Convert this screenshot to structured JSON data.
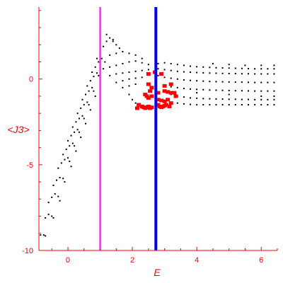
{
  "chart_data": {
    "type": "scatter",
    "title": "",
    "xlabel": "E",
    "ylabel": "<J3>",
    "xlim": [
      -0.9,
      6.5
    ],
    "ylim": [
      -10,
      4.2
    ],
    "grid": false,
    "axis_color": "#ff0000",
    "x_ticks": [
      {
        "value": 0,
        "label": "0"
      },
      {
        "value": 2,
        "label": "2"
      },
      {
        "value": 4,
        "label": "4"
      },
      {
        "value": 6,
        "label": "6"
      }
    ],
    "y_ticks": [
      {
        "value": 0,
        "label": "0"
      },
      {
        "value": -5,
        "label": "-5"
      },
      {
        "value": -10,
        "label": "-10"
      }
    ],
    "vertical_lines": [
      {
        "x": 1.0,
        "color": "#ff00ff"
      },
      {
        "x": 2.73,
        "color": "#0000ff"
      }
    ],
    "series": [
      {
        "color": "#000000",
        "size": "small",
        "points": [
          [
            -0.85,
            -9.1
          ],
          [
            -0.75,
            -9.1
          ],
          [
            -0.7,
            -9.15
          ],
          [
            -0.7,
            -8.1
          ],
          [
            -0.6,
            -7.9
          ],
          [
            -0.5,
            -8.0
          ],
          [
            -0.45,
            -8.1
          ],
          [
            -0.6,
            -7.2
          ],
          [
            -0.5,
            -6.9
          ],
          [
            -0.4,
            -6.7
          ],
          [
            -0.3,
            -6.85
          ],
          [
            -0.25,
            -7.1
          ],
          [
            -0.45,
            -6.2
          ],
          [
            -0.35,
            -5.9
          ],
          [
            -0.25,
            -5.75
          ],
          [
            -0.15,
            -5.8
          ],
          [
            -0.1,
            -6.0
          ],
          [
            -0.3,
            -5.2
          ],
          [
            -0.2,
            -4.9
          ],
          [
            -0.1,
            -4.7
          ],
          [
            0.0,
            -4.6
          ],
          [
            0.05,
            -4.8
          ],
          [
            0.1,
            -5.1
          ],
          [
            -0.15,
            -4.4
          ],
          [
            -0.05,
            -4.1
          ],
          [
            0.05,
            -3.9
          ],
          [
            0.15,
            -3.75
          ],
          [
            0.2,
            -3.9
          ],
          [
            0.25,
            -4.2
          ],
          [
            0.0,
            -3.6
          ],
          [
            0.1,
            -3.3
          ],
          [
            0.2,
            -3.1
          ],
          [
            0.3,
            -2.95
          ],
          [
            0.35,
            -3.1
          ],
          [
            0.4,
            -3.4
          ],
          [
            0.15,
            -2.8
          ],
          [
            0.25,
            -2.5
          ],
          [
            0.35,
            -2.3
          ],
          [
            0.45,
            -2.15
          ],
          [
            0.5,
            -2.3
          ],
          [
            0.55,
            -2.6
          ],
          [
            0.3,
            -2.0
          ],
          [
            0.4,
            -1.7
          ],
          [
            0.5,
            -1.5
          ],
          [
            0.6,
            -1.35
          ],
          [
            0.65,
            -1.5
          ],
          [
            0.7,
            -1.8
          ],
          [
            0.45,
            -1.2
          ],
          [
            0.55,
            -0.9
          ],
          [
            0.65,
            -0.7
          ],
          [
            0.75,
            -0.5
          ],
          [
            0.8,
            -0.7
          ],
          [
            0.85,
            -1.0
          ],
          [
            0.6,
            -0.4
          ],
          [
            0.7,
            -0.1
          ],
          [
            0.8,
            0.15
          ],
          [
            0.9,
            0.35
          ],
          [
            0.95,
            0.2
          ],
          [
            0.75,
            0.4
          ],
          [
            0.85,
            0.7
          ],
          [
            0.95,
            1.0
          ],
          [
            1.05,
            1.2
          ],
          [
            1.15,
            1.0
          ],
          [
            0.9,
            1.2
          ],
          [
            1.0,
            1.6
          ],
          [
            1.1,
            1.9
          ],
          [
            1.2,
            2.2
          ],
          [
            1.3,
            2.4
          ],
          [
            1.4,
            2.3
          ],
          [
            1.0,
            2.8
          ],
          [
            1.2,
            2.6
          ],
          [
            1.4,
            2.2
          ],
          [
            1.5,
            2.0
          ],
          [
            1.6,
            1.8
          ],
          [
            1.3,
            1.4
          ],
          [
            1.5,
            1.5
          ],
          [
            1.7,
            1.6
          ],
          [
            1.9,
            1.5
          ],
          [
            2.1,
            1.4
          ],
          [
            2.3,
            1.2
          ],
          [
            1.1,
            0.6
          ],
          [
            1.3,
            0.7
          ],
          [
            1.5,
            0.8
          ],
          [
            1.7,
            0.9
          ],
          [
            1.9,
            1.0
          ],
          [
            2.1,
            1.05
          ],
          [
            2.3,
            0.95
          ],
          [
            2.5,
            0.85
          ],
          [
            1.3,
            0.2
          ],
          [
            1.5,
            0.3
          ],
          [
            1.7,
            0.35
          ],
          [
            1.9,
            0.4
          ],
          [
            2.1,
            0.45
          ],
          [
            2.3,
            0.5
          ],
          [
            2.5,
            0.55
          ],
          [
            1.5,
            -0.2
          ],
          [
            1.7,
            -0.1
          ],
          [
            1.9,
            0.0
          ],
          [
            2.1,
            0.05
          ],
          [
            2.3,
            0.1
          ],
          [
            1.7,
            -0.5
          ],
          [
            1.9,
            -0.4
          ],
          [
            2.1,
            -0.3
          ],
          [
            1.9,
            -0.9
          ],
          [
            2.0,
            -1.2
          ],
          [
            2.1,
            -1.4
          ],
          [
            2.8,
            0.9
          ],
          [
            3.0,
            0.95
          ],
          [
            3.2,
            0.9
          ],
          [
            3.4,
            0.85
          ],
          [
            3.6,
            0.8
          ],
          [
            3.8,
            0.75
          ],
          [
            4.0,
            0.72
          ],
          [
            4.2,
            0.7
          ],
          [
            4.4,
            0.68
          ],
          [
            4.6,
            0.66
          ],
          [
            4.8,
            0.65
          ],
          [
            5.0,
            0.64
          ],
          [
            5.2,
            0.63
          ],
          [
            5.4,
            0.62
          ],
          [
            5.6,
            0.61
          ],
          [
            5.8,
            0.6
          ],
          [
            6.0,
            0.6
          ],
          [
            6.2,
            0.6
          ],
          [
            6.4,
            0.6
          ],
          [
            2.8,
            0.6
          ],
          [
            3.0,
            0.55
          ],
          [
            3.2,
            0.5
          ],
          [
            3.4,
            0.45
          ],
          [
            3.6,
            0.42
          ],
          [
            3.8,
            0.4
          ],
          [
            4.0,
            0.38
          ],
          [
            4.2,
            0.36
          ],
          [
            4.4,
            0.35
          ],
          [
            4.6,
            0.34
          ],
          [
            4.8,
            0.33
          ],
          [
            5.0,
            0.32
          ],
          [
            5.2,
            0.32
          ],
          [
            5.4,
            0.31
          ],
          [
            5.6,
            0.31
          ],
          [
            5.8,
            0.3
          ],
          [
            6.0,
            0.3
          ],
          [
            6.2,
            0.3
          ],
          [
            6.4,
            0.3
          ],
          [
            2.8,
            0.2
          ],
          [
            3.0,
            0.1
          ],
          [
            3.2,
            0.05
          ],
          [
            3.4,
            0.0
          ],
          [
            3.6,
            -0.05
          ],
          [
            3.8,
            -0.08
          ],
          [
            4.0,
            -0.1
          ],
          [
            4.2,
            -0.12
          ],
          [
            4.4,
            -0.14
          ],
          [
            4.6,
            -0.15
          ],
          [
            4.8,
            -0.16
          ],
          [
            5.0,
            -0.17
          ],
          [
            5.2,
            -0.18
          ],
          [
            5.4,
            -0.18
          ],
          [
            5.6,
            -0.19
          ],
          [
            5.8,
            -0.2
          ],
          [
            6.0,
            -0.2
          ],
          [
            6.2,
            -0.2
          ],
          [
            6.4,
            -0.2
          ],
          [
            3.0,
            -0.4
          ],
          [
            3.2,
            -0.45
          ],
          [
            3.4,
            -0.5
          ],
          [
            3.6,
            -0.55
          ],
          [
            3.8,
            -0.58
          ],
          [
            4.0,
            -0.6
          ],
          [
            4.2,
            -0.62
          ],
          [
            4.4,
            -0.64
          ],
          [
            4.6,
            -0.65
          ],
          [
            4.8,
            -0.66
          ],
          [
            5.0,
            -0.67
          ],
          [
            5.2,
            -0.68
          ],
          [
            5.4,
            -0.68
          ],
          [
            5.6,
            -0.69
          ],
          [
            5.8,
            -0.7
          ],
          [
            6.0,
            -0.7
          ],
          [
            6.2,
            -0.7
          ],
          [
            6.4,
            -0.7
          ],
          [
            3.2,
            -0.9
          ],
          [
            3.4,
            -1.0
          ],
          [
            3.6,
            -1.05
          ],
          [
            3.8,
            -1.1
          ],
          [
            4.0,
            -1.12
          ],
          [
            4.2,
            -1.14
          ],
          [
            4.4,
            -1.15
          ],
          [
            4.6,
            -1.16
          ],
          [
            4.8,
            -1.17
          ],
          [
            5.0,
            -1.18
          ],
          [
            5.2,
            -1.18
          ],
          [
            5.4,
            -1.19
          ],
          [
            5.6,
            -1.19
          ],
          [
            5.8,
            -1.2
          ],
          [
            6.0,
            -1.2
          ],
          [
            6.2,
            -1.2
          ],
          [
            6.4,
            -1.2
          ],
          [
            3.4,
            -1.4
          ],
          [
            3.6,
            -1.45
          ],
          [
            3.8,
            -1.48
          ],
          [
            4.0,
            -1.5
          ],
          [
            4.2,
            -1.5
          ],
          [
            4.4,
            -1.5
          ],
          [
            4.6,
            -1.5
          ],
          [
            4.8,
            -1.5
          ],
          [
            5.0,
            -1.5
          ],
          [
            5.2,
            -1.5
          ],
          [
            5.4,
            -1.5
          ],
          [
            5.6,
            -1.5
          ],
          [
            5.8,
            -1.5
          ],
          [
            6.0,
            -1.5
          ],
          [
            6.2,
            -1.5
          ],
          [
            6.4,
            -1.5
          ],
          [
            4.5,
            0.9
          ],
          [
            5.0,
            0.85
          ],
          [
            5.5,
            0.8
          ],
          [
            6.0,
            0.8
          ],
          [
            6.4,
            0.8
          ],
          [
            4.0,
            -0.8
          ],
          [
            5.0,
            -0.9
          ],
          [
            6.0,
            -1.0
          ],
          [
            6.4,
            -1.0
          ]
        ]
      },
      {
        "color": "#ff0000",
        "size": "large",
        "points": [
          [
            2.5,
            0.3
          ],
          [
            2.7,
            0.4
          ],
          [
            2.9,
            0.3
          ],
          [
            2.5,
            -0.3
          ],
          [
            2.6,
            -0.5
          ],
          [
            2.55,
            -0.7
          ],
          [
            2.4,
            -0.9
          ],
          [
            2.45,
            -1.0
          ],
          [
            2.5,
            -1.1
          ],
          [
            2.6,
            -1.0
          ],
          [
            2.3,
            -1.6
          ],
          [
            2.35,
            -1.65
          ],
          [
            2.4,
            -1.7
          ],
          [
            2.45,
            -1.65
          ],
          [
            2.5,
            -1.6
          ],
          [
            2.55,
            -1.7
          ],
          [
            2.6,
            -1.65
          ],
          [
            2.8,
            -1.5
          ],
          [
            2.85,
            -1.6
          ],
          [
            2.9,
            -1.65
          ],
          [
            2.95,
            -1.6
          ],
          [
            3.0,
            -1.55
          ],
          [
            3.05,
            -1.5
          ],
          [
            2.8,
            -1.2
          ],
          [
            2.9,
            -1.25
          ],
          [
            3.0,
            -1.3
          ],
          [
            3.1,
            -1.2
          ],
          [
            2.8,
            -0.8
          ],
          [
            3.0,
            -0.7
          ],
          [
            3.1,
            -0.75
          ],
          [
            3.2,
            -0.8
          ],
          [
            3.0,
            -0.4
          ],
          [
            3.2,
            -0.3
          ],
          [
            2.2,
            -1.5
          ],
          [
            2.15,
            -1.7
          ],
          [
            3.15,
            -1.6
          ],
          [
            3.2,
            -1.4
          ],
          [
            3.3,
            -0.8
          ],
          [
            3.35,
            -1.0
          ]
        ]
      }
    ]
  }
}
